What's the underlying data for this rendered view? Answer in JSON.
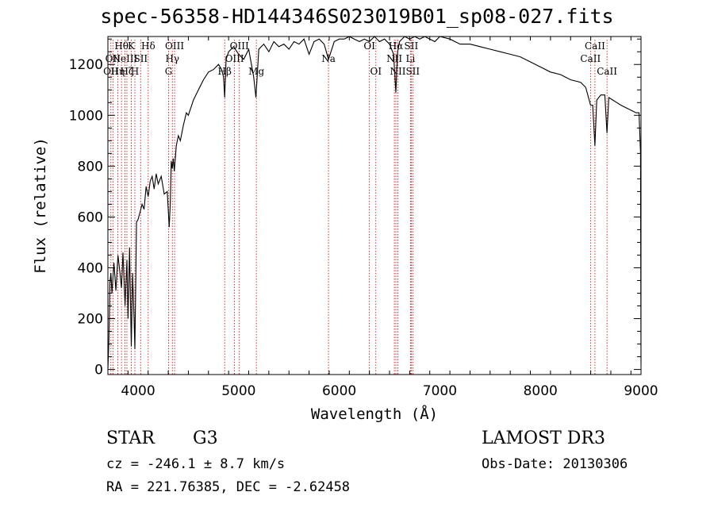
{
  "chart_data": {
    "type": "line",
    "title": "spec-56358-HD144346S023019B01_sp08-027.fits",
    "xlabel": "Wavelength (Å)",
    "ylabel": "Flux (relative)",
    "xlim": [
      3700,
      9000
    ],
    "ylim": [
      -20,
      1310
    ],
    "x_ticks": [
      4000,
      5000,
      6000,
      7000,
      8000,
      9000
    ],
    "y_ticks": [
      0,
      200,
      400,
      600,
      800,
      1000,
      1200
    ],
    "grid": false,
    "series": [
      {
        "x": [
          3700,
          3710,
          3720,
          3730,
          3740,
          3760,
          3780,
          3800,
          3820,
          3835,
          3850,
          3870,
          3889,
          3900,
          3915,
          3933,
          3945,
          3960,
          3968,
          3985,
          4000,
          4020,
          4040,
          4060,
          4080,
          4101,
          4120,
          4140,
          4160,
          4180,
          4200,
          4230,
          4260,
          4290,
          4310,
          4320,
          4330,
          4340,
          4350,
          4360,
          4380,
          4400,
          4420,
          4450,
          4480,
          4500,
          4550,
          4600,
          4650,
          4700,
          4750,
          4800,
          4830,
          4850,
          4861,
          4875,
          4900,
          4950,
          5000,
          5050,
          5100,
          5150,
          5172,
          5200,
          5250,
          5300,
          5350,
          5400,
          5450,
          5500,
          5550,
          5600,
          5650,
          5700,
          5750,
          5800,
          5850,
          5893,
          5950,
          6000,
          6050,
          6100,
          6150,
          6200,
          6250,
          6300,
          6350,
          6400,
          6450,
          6500,
          6540,
          6563,
          6580,
          6600,
          6650,
          6700,
          6750,
          6800,
          6850,
          6900,
          6950,
          7000,
          7100,
          7200,
          7300,
          7400,
          7500,
          7600,
          7700,
          7800,
          7900,
          8000,
          8100,
          8200,
          8300,
          8400,
          8450,
          8498,
          8520,
          8542,
          8560,
          8600,
          8640,
          8662,
          8680,
          8720,
          8760,
          8800,
          8850,
          8900,
          8950,
          8980,
          8995,
          9000
        ],
        "y": [
          0,
          120,
          340,
          380,
          300,
          420,
          310,
          450,
          380,
          320,
          460,
          250,
          430,
          200,
          480,
          90,
          380,
          200,
          80,
          580,
          590,
          620,
          650,
          630,
          720,
          680,
          740,
          760,
          710,
          770,
          730,
          760,
          690,
          700,
          560,
          650,
          820,
          790,
          830,
          780,
          880,
          920,
          900,
          960,
          1010,
          1000,
          1060,
          1100,
          1140,
          1170,
          1180,
          1200,
          1180,
          1150,
          1070,
          1220,
          1250,
          1270,
          1240,
          1220,
          1260,
          1150,
          1070,
          1260,
          1280,
          1250,
          1290,
          1270,
          1280,
          1260,
          1290,
          1280,
          1300,
          1240,
          1290,
          1300,
          1280,
          1220,
          1290,
          1300,
          1300,
          1310,
          1300,
          1290,
          1300,
          1290,
          1310,
          1290,
          1300,
          1280,
          1240,
          1090,
          1250,
          1290,
          1310,
          1300,
          1310,
          1300,
          1310,
          1300,
          1290,
          1310,
          1300,
          1280,
          1280,
          1270,
          1260,
          1250,
          1240,
          1230,
          1210,
          1190,
          1170,
          1160,
          1140,
          1130,
          1110,
          1040,
          1040,
          880,
          1060,
          1080,
          1080,
          930,
          1070,
          1060,
          1050,
          1040,
          1030,
          1020,
          1010,
          1010,
          850,
          20
        ]
      }
    ],
    "line_markers": [
      {
        "wavelength": 3730,
        "label": "OII",
        "row": 2
      },
      {
        "wavelength": 3750,
        "label": "OII",
        "row": 1
      },
      {
        "wavelength": 3798,
        "label": "Hη",
        "row": 2
      },
      {
        "wavelength": 3835,
        "label": "Hθ",
        "row": 0
      },
      {
        "wavelength": 3869,
        "label": "NeIII",
        "row": 1
      },
      {
        "wavelength": 3889,
        "label": "Hζ",
        "row": 2
      },
      {
        "wavelength": 3933,
        "label": "K",
        "row": 0
      },
      {
        "wavelength": 3968,
        "label": "H",
        "row": 2
      },
      {
        "wavelength": 4026,
        "label": "SII",
        "row": 1
      },
      {
        "wavelength": 4101,
        "label": "Hδ",
        "row": 0
      },
      {
        "wavelength": 4304,
        "label": "G",
        "row": 2
      },
      {
        "wavelength": 4341,
        "label": "Hγ",
        "row": 1
      },
      {
        "wavelength": 4363,
        "label": "OIII",
        "row": 0
      },
      {
        "wavelength": 4861,
        "label": "Hβ",
        "row": 2
      },
      {
        "wavelength": 4959,
        "label": "OIII",
        "row": 1
      },
      {
        "wavelength": 5007,
        "label": "OIII",
        "row": 0
      },
      {
        "wavelength": 5176,
        "label": "Mg",
        "row": 2
      },
      {
        "wavelength": 5893,
        "label": "Na",
        "row": 1
      },
      {
        "wavelength": 6300,
        "label": "OI",
        "row": 0
      },
      {
        "wavelength": 6364,
        "label": "OI",
        "row": 2
      },
      {
        "wavelength": 6548,
        "label": "NII",
        "row": 1
      },
      {
        "wavelength": 6563,
        "label": "Hα",
        "row": 0
      },
      {
        "wavelength": 6583,
        "label": "NII",
        "row": 2
      },
      {
        "wavelength": 6708,
        "label": "Li",
        "row": 1
      },
      {
        "wavelength": 6716,
        "label": "SII",
        "row": 0
      },
      {
        "wavelength": 6731,
        "label": "SII",
        "row": 2
      },
      {
        "wavelength": 8498,
        "label": "CaII",
        "row": 1
      },
      {
        "wavelength": 8542,
        "label": "CaII",
        "row": 0
      },
      {
        "wavelength": 8662,
        "label": "CaII",
        "row": 2
      }
    ]
  },
  "info": {
    "object_class": "STAR",
    "subclass": "G3",
    "survey": "LAMOST DR3",
    "redshift": "cz = -246.1 ± 8.7 km/s",
    "obs_date": "Obs-Date: 20130306",
    "coords": "RA = 221.76385, DEC =  -2.62458"
  },
  "colors": {
    "spectrum": "#000000",
    "line_marker": "#cc0000",
    "axis": "#000000"
  }
}
